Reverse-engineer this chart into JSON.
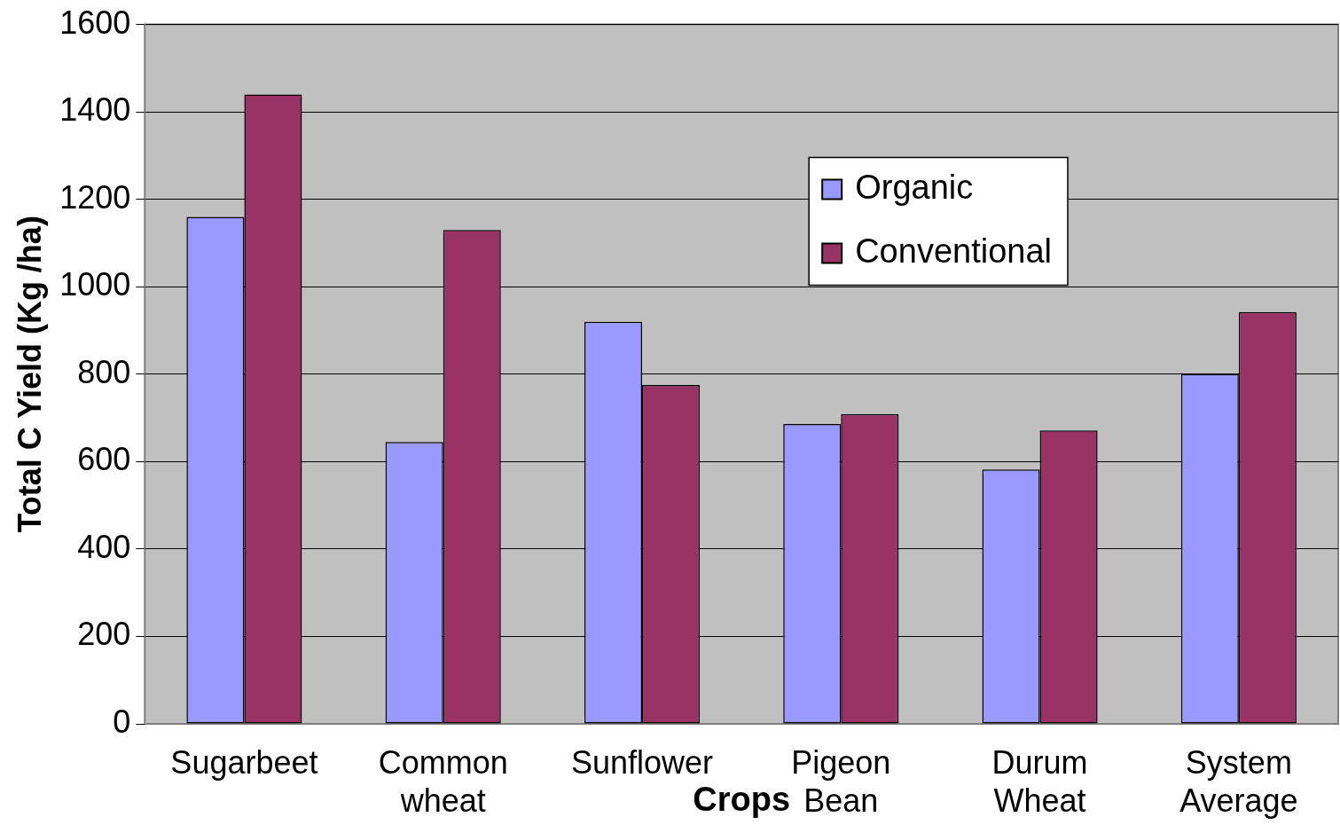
{
  "chart_data": {
    "type": "bar",
    "xlabel": "Crops",
    "ylabel": "Total C Yield (Kg /ha)",
    "categories": [
      "Sugarbeet",
      "Common wheat",
      "Sunflower",
      "Pigeon Bean",
      "Durum Wheat",
      "System Average"
    ],
    "series": [
      {
        "name": "Organic",
        "color": "#9999ff",
        "values": [
          1160,
          645,
          920,
          686,
          582,
          800
        ]
      },
      {
        "name": "Conventional",
        "color": "#993366",
        "values": [
          1440,
          1130,
          775,
          709,
          671,
          942
        ]
      }
    ],
    "ylim": [
      0,
      1600
    ],
    "yticks": [
      0,
      200,
      400,
      600,
      800,
      1000,
      1200,
      1400,
      1600
    ],
    "grid": "y",
    "legend": "top right"
  }
}
